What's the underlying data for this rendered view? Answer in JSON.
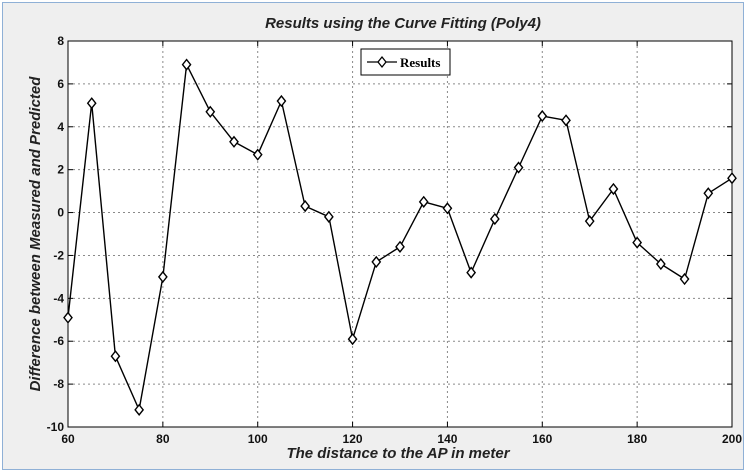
{
  "chart_data": {
    "type": "line",
    "title": "Results using the Curve Fitting (Poly4)",
    "xlabel": "The distance to the AP in meter",
    "ylabel": "Difference between Measured and Predicted",
    "xlim": [
      60,
      200
    ],
    "ylim": [
      -10,
      8
    ],
    "xticks": [
      60,
      80,
      100,
      120,
      140,
      160,
      180,
      200
    ],
    "yticks": [
      8,
      6,
      4,
      2,
      0,
      -2,
      -4,
      -6,
      -8,
      -10
    ],
    "xtick_labels": [
      "60",
      "80",
      "100",
      "120",
      "140",
      "160",
      "180",
      "200"
    ],
    "ytick_labels": [
      "8",
      "6",
      "4",
      "2",
      "0",
      "-2",
      "-4",
      "-6",
      "-8",
      "-10"
    ],
    "grid": true,
    "legend_position": "top-center",
    "marker": "diamond",
    "line_color": "#000000",
    "series": [
      {
        "name": "Results",
        "x": [
          60,
          65,
          70,
          75,
          80,
          85,
          90,
          95,
          100,
          105,
          110,
          115,
          120,
          125,
          130,
          135,
          140,
          145,
          150,
          155,
          160,
          165,
          170,
          175,
          180,
          185,
          190,
          195,
          200
        ],
        "y": [
          -4.9,
          5.1,
          -6.7,
          -9.2,
          -3.0,
          6.9,
          4.7,
          3.3,
          2.7,
          5.2,
          0.3,
          -0.2,
          -5.9,
          -2.3,
          -1.6,
          0.5,
          0.2,
          -2.8,
          -0.3,
          2.1,
          4.5,
          4.3,
          -0.4,
          1.1,
          -1.4,
          -2.4,
          -3.1,
          0.9,
          1.6
        ]
      }
    ]
  }
}
